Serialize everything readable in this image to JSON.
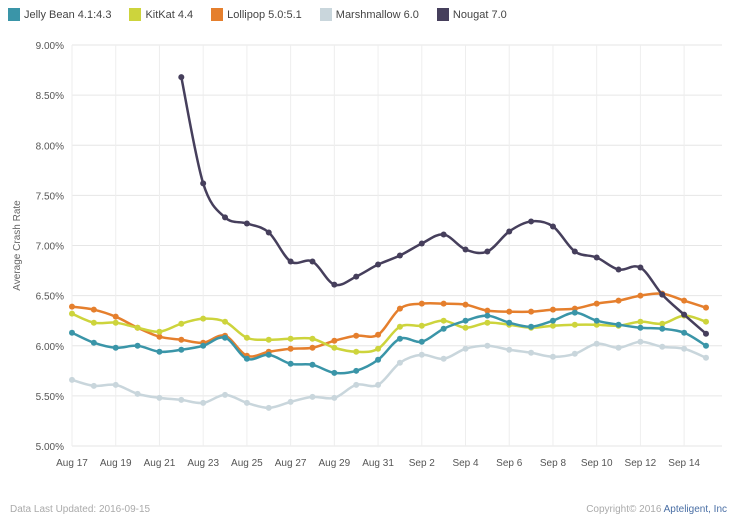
{
  "chart_data": {
    "type": "line",
    "ylabel": "Average Crash Rate",
    "ylim": [
      5.0,
      9.0
    ],
    "yticks": [
      "5.00%",
      "5.50%",
      "6.00%",
      "6.50%",
      "7.00%",
      "7.50%",
      "8.00%",
      "8.50%",
      "9.00%"
    ],
    "ytick_values": [
      5.0,
      5.5,
      6.0,
      6.5,
      7.0,
      7.5,
      8.0,
      8.5,
      9.0
    ],
    "x": [
      "Aug 17",
      "Aug 18",
      "Aug 19",
      "Aug 20",
      "Aug 21",
      "Aug 22",
      "Aug 23",
      "Aug 24",
      "Aug 25",
      "Aug 26",
      "Aug 27",
      "Aug 28",
      "Aug 29",
      "Aug 30",
      "Aug 31",
      "Sep 1",
      "Sep 2",
      "Sep 3",
      "Sep 4",
      "Sep 5",
      "Sep 6",
      "Sep 7",
      "Sep 8",
      "Sep 9",
      "Sep 10",
      "Sep 11",
      "Sep 12",
      "Sep 13",
      "Sep 14",
      "Sep 15"
    ],
    "xtick_labels": [
      "Aug 17",
      "Aug 19",
      "Aug 21",
      "Aug 23",
      "Aug 25",
      "Aug 27",
      "Aug 29",
      "Aug 31",
      "Sep 2",
      "Sep 4",
      "Sep 6",
      "Sep 8",
      "Sep 10",
      "Sep 12",
      "Sep 14"
    ],
    "grid": true,
    "legend_position": "top",
    "series": [
      {
        "name": "Jelly Bean 4.1:4.3",
        "color": "#3a95a8",
        "values": [
          6.13,
          6.03,
          5.98,
          6.0,
          5.94,
          5.96,
          6.0,
          6.08,
          5.87,
          5.91,
          5.82,
          5.81,
          5.73,
          5.75,
          5.86,
          6.07,
          6.04,
          6.17,
          6.25,
          6.3,
          6.23,
          6.19,
          6.25,
          6.33,
          6.25,
          6.21,
          6.18,
          6.17,
          6.13,
          6.0
        ]
      },
      {
        "name": "KitKat 4.4",
        "color": "#cdd43c",
        "values": [
          6.32,
          6.23,
          6.23,
          6.18,
          6.14,
          6.22,
          6.27,
          6.24,
          6.08,
          6.06,
          6.07,
          6.07,
          5.98,
          5.94,
          5.97,
          6.19,
          6.2,
          6.25,
          6.18,
          6.23,
          6.21,
          6.18,
          6.2,
          6.21,
          6.21,
          6.2,
          6.24,
          6.22,
          6.3,
          6.24
        ]
      },
      {
        "name": "Lollipop 5.0:5.1",
        "color": "#e57f2d",
        "values": [
          6.39,
          6.36,
          6.29,
          6.18,
          6.09,
          6.06,
          6.03,
          6.1,
          5.9,
          5.94,
          5.97,
          5.98,
          6.05,
          6.1,
          6.11,
          6.37,
          6.42,
          6.42,
          6.41,
          6.35,
          6.34,
          6.34,
          6.36,
          6.37,
          6.42,
          6.45,
          6.5,
          6.52,
          6.45,
          6.38
        ]
      },
      {
        "name": "Marshmallow 6.0",
        "color": "#c9d6dc",
        "values": [
          5.66,
          5.6,
          5.61,
          5.52,
          5.48,
          5.46,
          5.43,
          5.51,
          5.43,
          5.38,
          5.44,
          5.49,
          5.48,
          5.61,
          5.61,
          5.83,
          5.91,
          5.87,
          5.97,
          6.0,
          5.96,
          5.93,
          5.89,
          5.92,
          6.02,
          5.98,
          6.04,
          5.99,
          5.97,
          5.88
        ]
      },
      {
        "name": "Nougat 7.0",
        "color": "#463f5c",
        "values": [
          null,
          null,
          null,
          null,
          null,
          8.68,
          7.62,
          7.28,
          7.22,
          7.13,
          6.84,
          6.84,
          6.61,
          6.69,
          6.81,
          6.9,
          7.02,
          7.11,
          6.96,
          6.94,
          7.14,
          7.24,
          7.19,
          6.94,
          6.88,
          6.76,
          6.78,
          6.51,
          6.31,
          6.12
        ]
      }
    ]
  },
  "footer": {
    "updated": "Data Last Updated: 2016-09-15",
    "copyright": "Copyright© 2016 ",
    "brand": "Apteligent, Inc"
  }
}
